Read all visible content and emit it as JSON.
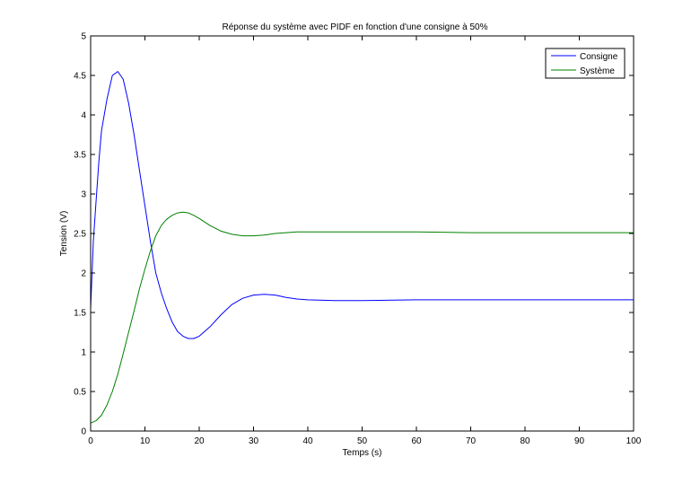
{
  "chart_data": {
    "type": "line",
    "title": "Réponse du système avec PIDF en fonction d'une consigne à 50%",
    "xlabel": "Temps (s)",
    "ylabel": "Tension (V)",
    "xlim": [
      0,
      100
    ],
    "ylim": [
      0,
      5
    ],
    "x_ticks": [
      0,
      10,
      20,
      30,
      40,
      50,
      60,
      70,
      80,
      90,
      100
    ],
    "y_ticks": [
      0,
      0.5,
      1,
      1.5,
      2,
      2.5,
      3,
      3.5,
      4,
      4.5,
      5
    ],
    "x_tick_labels": [
      "0",
      "10",
      "20",
      "30",
      "40",
      "50",
      "60",
      "70",
      "80",
      "90",
      "100"
    ],
    "y_tick_labels": [
      "0",
      "0.5",
      "1",
      "1.5",
      "2",
      "2.5",
      "3",
      "3.5",
      "4",
      "4.5",
      "5"
    ],
    "grid": false,
    "legend_position": "top-right",
    "series": [
      {
        "name": "Consigne",
        "color": "#0000ff",
        "x": [
          0,
          0.5,
          1,
          1.5,
          2,
          3,
          4,
          5,
          6,
          7,
          8,
          9,
          10,
          11,
          12,
          13,
          14,
          15,
          16,
          17,
          18,
          19,
          20,
          22,
          24,
          26,
          28,
          30,
          32,
          34,
          36,
          38,
          40,
          45,
          50,
          60,
          70,
          80,
          90,
          100
        ],
        "y": [
          1.55,
          2.4,
          2.9,
          3.4,
          3.8,
          4.2,
          4.5,
          4.55,
          4.45,
          4.15,
          3.75,
          3.3,
          2.85,
          2.4,
          2.0,
          1.75,
          1.55,
          1.38,
          1.26,
          1.2,
          1.17,
          1.17,
          1.2,
          1.32,
          1.47,
          1.6,
          1.68,
          1.72,
          1.73,
          1.72,
          1.69,
          1.67,
          1.66,
          1.65,
          1.65,
          1.66,
          1.66,
          1.66,
          1.66,
          1.66
        ]
      },
      {
        "name": "Système",
        "color": "#008000",
        "x": [
          0,
          1,
          2,
          3,
          4,
          5,
          6,
          7,
          8,
          9,
          10,
          11,
          12,
          13,
          14,
          15,
          16,
          17,
          18,
          19,
          20,
          22,
          24,
          26,
          28,
          30,
          32,
          34,
          36,
          38,
          40,
          45,
          50,
          60,
          70,
          80,
          90,
          100
        ],
        "y": [
          0.1,
          0.13,
          0.2,
          0.33,
          0.5,
          0.72,
          0.98,
          1.25,
          1.52,
          1.8,
          2.05,
          2.28,
          2.47,
          2.6,
          2.68,
          2.73,
          2.76,
          2.77,
          2.76,
          2.73,
          2.69,
          2.6,
          2.53,
          2.49,
          2.47,
          2.47,
          2.48,
          2.5,
          2.51,
          2.52,
          2.52,
          2.52,
          2.52,
          2.52,
          2.51,
          2.51,
          2.51,
          2.51
        ]
      }
    ]
  }
}
